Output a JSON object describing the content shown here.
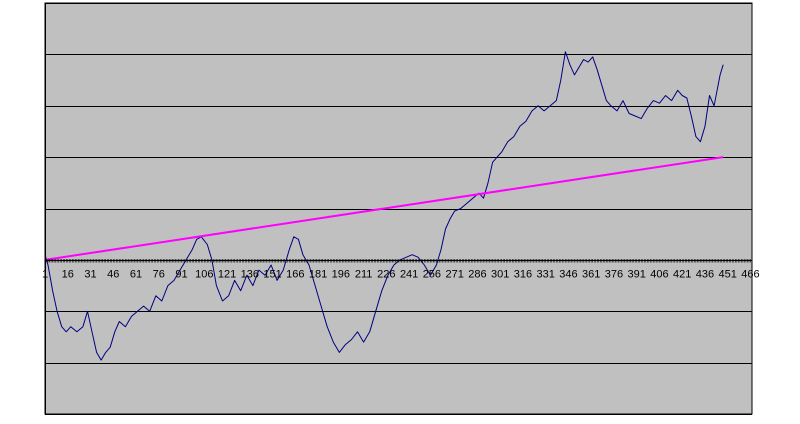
{
  "chart_data": {
    "type": "line",
    "title": "",
    "xlabel": "",
    "ylabel": "",
    "x_tick_labels": [
      "1",
      "16",
      "31",
      "46",
      "61",
      "76",
      "91",
      "106",
      "121",
      "136",
      "151",
      "166",
      "181",
      "196",
      "211",
      "226",
      "241",
      "256",
      "271",
      "286",
      "301",
      "316",
      "331",
      "346",
      "361",
      "376",
      "391",
      "406",
      "421",
      "436",
      "451",
      "466"
    ],
    "x_range": [
      1,
      467
    ],
    "y_range": [
      -3,
      5
    ],
    "y_tick_labels": [],
    "grid": "horizontal",
    "legend": "none",
    "colors": {
      "plot_background": "#c0c0c0",
      "gridline": "#000000",
      "axis": "#000000",
      "series_1": "#000080",
      "series_2": "#ff00ff"
    },
    "series": [
      {
        "key": "series_1",
        "points": [
          [
            1,
            0.1
          ],
          [
            3,
            -0.1
          ],
          [
            6,
            -0.6
          ],
          [
            9,
            -1.0
          ],
          [
            12,
            -1.3
          ],
          [
            15,
            -1.4
          ],
          [
            18,
            -1.3
          ],
          [
            22,
            -1.4
          ],
          [
            26,
            -1.3
          ],
          [
            29,
            -1.0
          ],
          [
            32,
            -1.4
          ],
          [
            35,
            -1.8
          ],
          [
            38,
            -1.95
          ],
          [
            41,
            -1.8
          ],
          [
            44,
            -1.7
          ],
          [
            47,
            -1.4
          ],
          [
            50,
            -1.2
          ],
          [
            54,
            -1.3
          ],
          [
            58,
            -1.1
          ],
          [
            62,
            -1.0
          ],
          [
            66,
            -0.9
          ],
          [
            70,
            -1.0
          ],
          [
            74,
            -0.7
          ],
          [
            78,
            -0.8
          ],
          [
            82,
            -0.5
          ],
          [
            86,
            -0.4
          ],
          [
            90,
            -0.2
          ],
          [
            94,
            0.0
          ],
          [
            98,
            0.2
          ],
          [
            101,
            0.4
          ],
          [
            104,
            0.45
          ],
          [
            108,
            0.3
          ],
          [
            111,
            0.0
          ],
          [
            114,
            -0.5
          ],
          [
            118,
            -0.8
          ],
          [
            122,
            -0.7
          ],
          [
            126,
            -0.4
          ],
          [
            130,
            -0.6
          ],
          [
            134,
            -0.3
          ],
          [
            138,
            -0.5
          ],
          [
            142,
            -0.2
          ],
          [
            146,
            -0.3
          ],
          [
            150,
            -0.1
          ],
          [
            154,
            -0.4
          ],
          [
            158,
            -0.2
          ],
          [
            162,
            0.2
          ],
          [
            165,
            0.45
          ],
          [
            168,
            0.4
          ],
          [
            171,
            0.1
          ],
          [
            175,
            -0.1
          ],
          [
            179,
            -0.5
          ],
          [
            183,
            -0.9
          ],
          [
            187,
            -1.3
          ],
          [
            191,
            -1.6
          ],
          [
            195,
            -1.8
          ],
          [
            199,
            -1.65
          ],
          [
            203,
            -1.55
          ],
          [
            207,
            -1.4
          ],
          [
            211,
            -1.6
          ],
          [
            215,
            -1.4
          ],
          [
            219,
            -1.0
          ],
          [
            223,
            -0.6
          ],
          [
            227,
            -0.3
          ],
          [
            231,
            -0.1
          ],
          [
            235,
            0.0
          ],
          [
            239,
            0.05
          ],
          [
            243,
            0.1
          ],
          [
            247,
            0.05
          ],
          [
            251,
            -0.1
          ],
          [
            255,
            -0.3
          ],
          [
            259,
            -0.1
          ],
          [
            262,
            0.2
          ],
          [
            265,
            0.6
          ],
          [
            268,
            0.8
          ],
          [
            271,
            0.95
          ],
          [
            275,
            1.0
          ],
          [
            279,
            1.1
          ],
          [
            283,
            1.2
          ],
          [
            287,
            1.3
          ],
          [
            290,
            1.2
          ],
          [
            293,
            1.5
          ],
          [
            296,
            1.9
          ],
          [
            299,
            2.0
          ],
          [
            302,
            2.1
          ],
          [
            306,
            2.3
          ],
          [
            310,
            2.4
          ],
          [
            314,
            2.6
          ],
          [
            318,
            2.7
          ],
          [
            322,
            2.9
          ],
          [
            326,
            3.0
          ],
          [
            330,
            2.9
          ],
          [
            334,
            3.0
          ],
          [
            338,
            3.1
          ],
          [
            341,
            3.5
          ],
          [
            344,
            4.05
          ],
          [
            347,
            3.8
          ],
          [
            350,
            3.6
          ],
          [
            353,
            3.75
          ],
          [
            356,
            3.9
          ],
          [
            359,
            3.85
          ],
          [
            362,
            3.95
          ],
          [
            365,
            3.7
          ],
          [
            368,
            3.4
          ],
          [
            371,
            3.1
          ],
          [
            374,
            3.0
          ],
          [
            378,
            2.9
          ],
          [
            382,
            3.1
          ],
          [
            386,
            2.85
          ],
          [
            390,
            2.8
          ],
          [
            394,
            2.75
          ],
          [
            398,
            2.95
          ],
          [
            402,
            3.1
          ],
          [
            406,
            3.05
          ],
          [
            410,
            3.2
          ],
          [
            414,
            3.1
          ],
          [
            418,
            3.3
          ],
          [
            421,
            3.2
          ],
          [
            424,
            3.15
          ],
          [
            427,
            2.8
          ],
          [
            430,
            2.4
          ],
          [
            433,
            2.3
          ],
          [
            436,
            2.6
          ],
          [
            439,
            3.2
          ],
          [
            442,
            3.0
          ],
          [
            444,
            3.3
          ],
          [
            446,
            3.6
          ],
          [
            448,
            3.8
          ]
        ]
      },
      {
        "key": "series_2",
        "points": [
          [
            1,
            0.0
          ],
          [
            448,
            2.0
          ]
        ]
      }
    ]
  }
}
